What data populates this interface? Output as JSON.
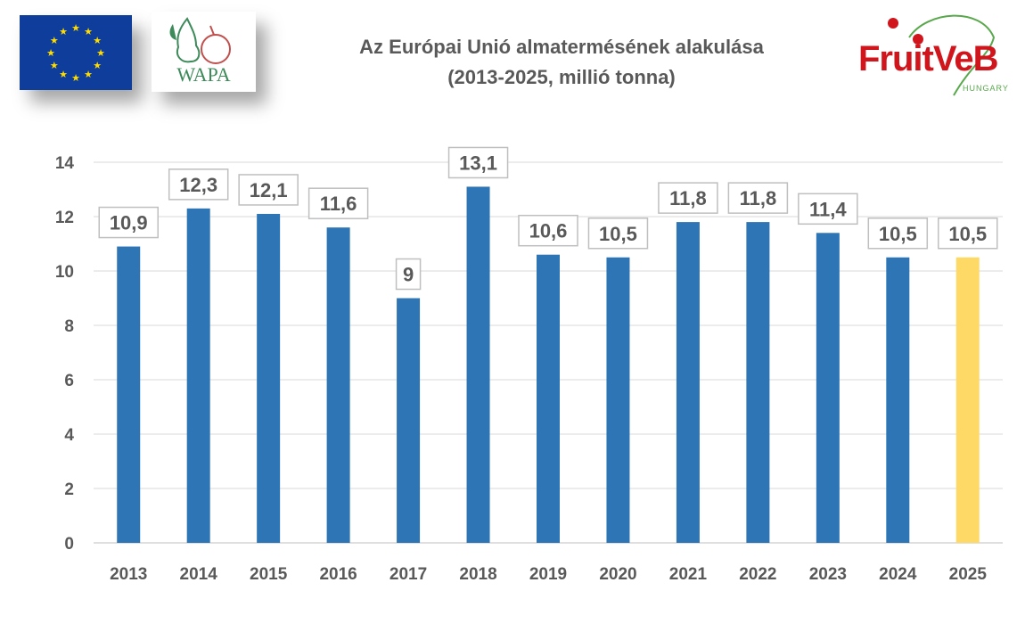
{
  "header": {
    "title_line1": "Az Európai Unió almatermésének alakulása",
    "title_line2": "(2013-2025, millió tonna)",
    "logos": {
      "eu": "EU flag",
      "wapa": "WAPA",
      "fruitveb": "FruitVeB",
      "fruitveb_sub": "HUNGARY"
    }
  },
  "colors": {
    "bar": "#2e75b6",
    "highlight": "#ffd966",
    "grid": "#d9d9d9",
    "text": "#595959"
  },
  "chart_data": {
    "type": "bar",
    "title": "Az Európai Unió almatermésének alakulása (2013-2025, millió tonna)",
    "xlabel": "",
    "ylabel": "",
    "categories": [
      "2013",
      "2014",
      "2015",
      "2016",
      "2017",
      "2018",
      "2019",
      "2020",
      "2021",
      "2022",
      "2023",
      "2024",
      "2025"
    ],
    "values": [
      10.9,
      12.3,
      12.1,
      11.6,
      9,
      13.1,
      10.6,
      10.5,
      11.8,
      11.8,
      11.4,
      10.5,
      10.5
    ],
    "data_labels": [
      "10,9",
      "12,3",
      "12,1",
      "11,6",
      "9",
      "13,1",
      "10,6",
      "10,5",
      "11,8",
      "11,8",
      "11,4",
      "10,5",
      "10,5"
    ],
    "highlighted": [
      "2025"
    ],
    "ylim": [
      0,
      14
    ],
    "yticks": [
      0,
      2,
      4,
      6,
      8,
      10,
      12,
      14
    ],
    "grid": true,
    "legend": "none"
  }
}
